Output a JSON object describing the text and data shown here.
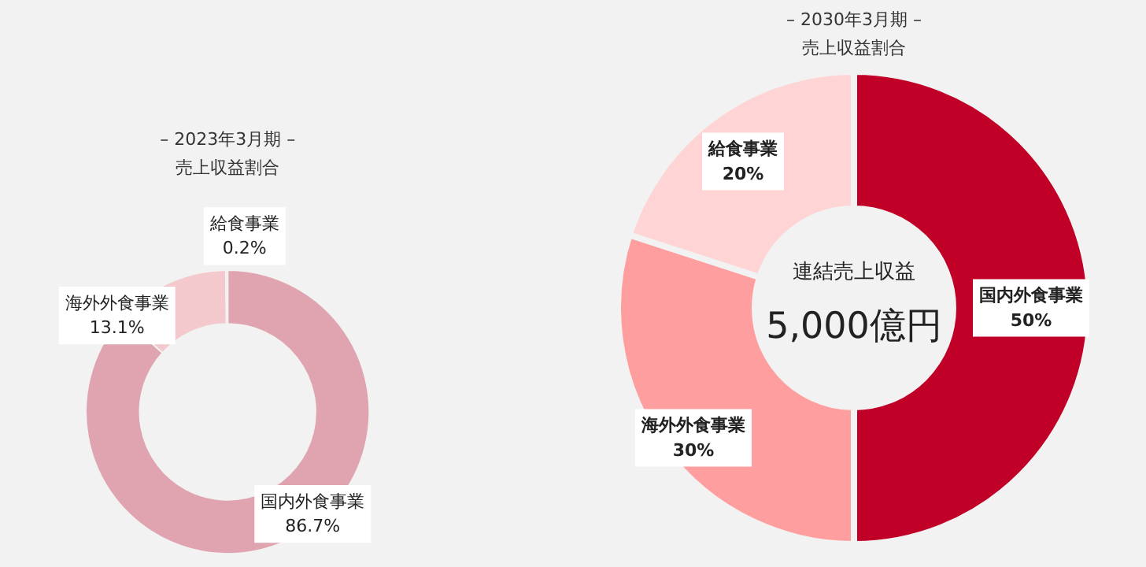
{
  "chart_data": [
    {
      "type": "donut",
      "title": "– 2023年3月期 –",
      "subtitle": "売上収益割合",
      "categories": [
        "国内外食事業",
        "海外外食事業",
        "給食事業"
      ],
      "values": [
        86.7,
        13.1,
        0.2
      ],
      "value_labels": [
        "86.7%",
        "13.1%",
        "0.2%"
      ],
      "colors": [
        "#e0a4b1",
        "#f3c9cd",
        "#f3c9cd"
      ]
    },
    {
      "type": "donut",
      "title": "– 2030年3月期 –",
      "subtitle": "売上収益割合",
      "categories": [
        "国内外食事業",
        "海外外食事業",
        "給食事業"
      ],
      "values": [
        50,
        30,
        20
      ],
      "value_labels": [
        "50%",
        "30%",
        "20%"
      ],
      "colors": [
        "#c00026",
        "#ff9e9e",
        "#ffd4d4"
      ],
      "annotations": [
        "連結売上収益",
        "5,000億円"
      ]
    }
  ]
}
